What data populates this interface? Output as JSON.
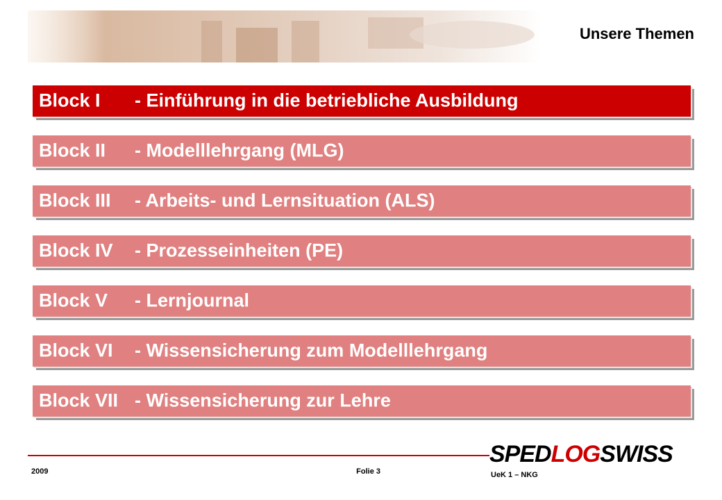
{
  "header": {
    "title": "Unsere Themen"
  },
  "blocks": [
    {
      "label": "Block I",
      "text": "- Einführung in die betriebliche Ausbildung",
      "active": true
    },
    {
      "label": "Block II",
      "text": "- Modelllehrgang (MLG)",
      "active": false
    },
    {
      "label": "Block III",
      "text": "- Arbeits- und Lernsituation (ALS)",
      "active": false
    },
    {
      "label": "Block IV",
      "text": "- Prozesseinheiten (PE)",
      "active": false
    },
    {
      "label": "Block V",
      "text": "- Lernjournal",
      "active": false
    },
    {
      "label": "Block VI",
      "text": "- Wissensicherung zum Modelllehrgang",
      "active": false
    },
    {
      "label": "Block VII",
      "text": "- Wissensicherung zur Lehre",
      "active": false
    }
  ],
  "footer": {
    "year": "2009",
    "page": "Folie 3",
    "logo": {
      "parts": [
        "SPED",
        "LOG",
        "SWISS"
      ]
    },
    "course": "UeK 1 – NKG"
  }
}
